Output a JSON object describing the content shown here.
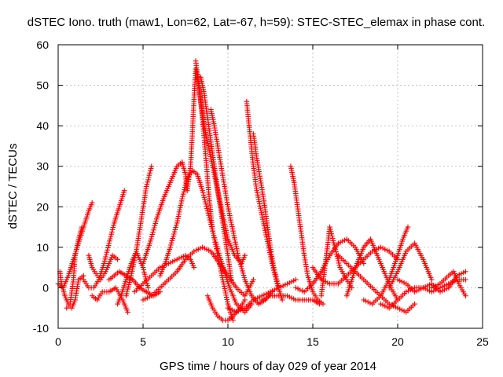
{
  "chart_data": {
    "type": "scatter",
    "title": "dSTEC Iono. truth (maw1, Lon=62, Lat=-67, h=59): STEC-STEC_elemax in phase cont.",
    "xlabel": "GPS time / hours of day 029 of year 2014",
    "ylabel": "dSTEC  / TECUs",
    "xlim": [
      0,
      25
    ],
    "ylim": [
      -10,
      60
    ],
    "xticks": [
      "0",
      "5",
      "10",
      "15",
      "20",
      "25"
    ],
    "yticks": [
      "-10",
      "0",
      "10",
      "20",
      "30",
      "40",
      "50",
      "60"
    ],
    "grid": true,
    "marker": "+",
    "color": "#ff0000",
    "series": [
      {
        "x": [
          0.0,
          0.3,
          0.6,
          0.9,
          1.2,
          1.5,
          1.8,
          2.0
        ],
        "y": [
          1,
          0,
          3,
          7,
          11,
          15,
          19,
          21
        ]
      },
      {
        "x": [
          0.1,
          0.2,
          0.4,
          0.6,
          0.8,
          1.0,
          1.2,
          1.5
        ],
        "y": [
          4,
          1,
          -2,
          -4,
          -5,
          -3,
          2,
          3
        ]
      },
      {
        "x": [
          0.5,
          0.7,
          0.9,
          1.0,
          1.2,
          1.4
        ],
        "y": [
          -5,
          -4,
          2,
          8,
          12,
          15
        ]
      },
      {
        "x": [
          1.5,
          1.8,
          2.1,
          2.4,
          2.7,
          3.0,
          3.3,
          3.6,
          3.9
        ],
        "y": [
          2,
          0,
          0,
          2,
          6,
          11,
          16,
          20,
          24
        ]
      },
      {
        "x": [
          2.0,
          2.3,
          2.6,
          3.0,
          3.4,
          3.8,
          4.1
        ],
        "y": [
          -2,
          -3,
          -1,
          -1,
          0,
          -3,
          -6
        ]
      },
      {
        "x": [
          1.8,
          2.0,
          2.3,
          2.5,
          2.8,
          3.0,
          3.2,
          3.5
        ],
        "y": [
          8,
          5,
          3,
          2,
          4,
          6,
          8,
          7
        ]
      },
      {
        "x": [
          3.5,
          3.7,
          4.0,
          4.3,
          4.6,
          5.0,
          5.3
        ],
        "y": [
          -4,
          -2,
          2,
          6,
          9,
          5,
          0
        ]
      },
      {
        "x": [
          3.0,
          3.3,
          3.6,
          4.0,
          4.4,
          4.8,
          5.2,
          5.6,
          6.0
        ],
        "y": [
          2,
          3,
          4,
          3,
          2,
          0,
          -1,
          -2,
          -1
        ]
      },
      {
        "x": [
          4.0,
          4.3,
          4.6,
          4.9,
          5.2,
          5.5
        ],
        "y": [
          -2,
          3,
          9,
          17,
          25,
          30
        ]
      },
      {
        "x": [
          5.0,
          5.4,
          5.8,
          6.2,
          6.6,
          7.0,
          7.3
        ],
        "y": [
          6,
          11,
          17,
          22,
          26,
          30,
          31
        ]
      },
      {
        "x": [
          7.3,
          7.5,
          7.6,
          7.8,
          7.9,
          8.0,
          8.1,
          8.2,
          8.4,
          8.6,
          8.9,
          9.2,
          9.6,
          10.0,
          10.4,
          10.8,
          11.0
        ],
        "y": [
          31,
          28,
          24,
          30,
          38,
          46,
          54,
          52,
          46,
          40,
          34,
          28,
          20,
          12,
          8,
          6,
          8
        ]
      },
      {
        "x": [
          8.1,
          8.3,
          8.5,
          8.7,
          8.9,
          9.1,
          9.4,
          9.7,
          10.0,
          10.3
        ],
        "y": [
          56,
          50,
          42,
          32,
          22,
          14,
          8,
          2,
          -4,
          -8
        ]
      },
      {
        "x": [
          8.4,
          8.6,
          8.8,
          9.0,
          9.2,
          9.4,
          9.7,
          10.0,
          10.2
        ],
        "y": [
          52,
          48,
          42,
          36,
          30,
          24,
          16,
          8,
          2
        ]
      },
      {
        "x": [
          6.0,
          6.3,
          6.6,
          7.0,
          7.3,
          7.6,
          7.9,
          8.2,
          8.5,
          8.8,
          9.1,
          9.5,
          9.8,
          10.1,
          10.5,
          11.0,
          11.4
        ],
        "y": [
          3,
          6,
          10,
          16,
          22,
          27,
          29,
          28,
          24,
          19,
          14,
          8,
          4,
          0,
          -4,
          -6,
          -4
        ]
      },
      {
        "x": [
          4.5,
          5.0,
          5.5,
          6.0,
          6.5,
          7.0,
          7.5,
          7.8,
          8.0
        ],
        "y": [
          -1,
          1,
          3,
          5,
          6,
          7,
          8,
          7,
          5
        ]
      },
      {
        "x": [
          5.0,
          5.5,
          6.0,
          6.5,
          7.0,
          7.5,
          8.0,
          8.5,
          9.0,
          9.5,
          10.0,
          10.5,
          11.0,
          11.5
        ],
        "y": [
          -3,
          -2,
          0,
          2,
          4,
          7,
          9,
          10,
          9,
          6,
          3,
          0,
          -2,
          2
        ]
      },
      {
        "x": [
          9.0,
          9.2,
          9.4,
          9.6,
          9.8,
          10.0,
          10.3,
          10.6,
          11.0,
          11.4,
          11.8,
          12.2,
          12.6
        ],
        "y": [
          44,
          40,
          35,
          30,
          25,
          20,
          14,
          8,
          2,
          -2,
          -4,
          -3,
          -1
        ]
      },
      {
        "x": [
          8.8,
          9.1,
          9.4,
          9.7,
          10.0,
          10.3,
          10.7,
          11.0
        ],
        "y": [
          -2,
          -5,
          -7,
          -8,
          -8,
          -7,
          -5,
          -3
        ]
      },
      {
        "x": [
          11.1,
          11.3,
          11.5,
          11.7,
          12.0,
          12.3,
          12.6,
          12.9,
          13.2
        ],
        "y": [
          46,
          38,
          30,
          24,
          18,
          12,
          6,
          1,
          -3
        ]
      },
      {
        "x": [
          11.5,
          11.7,
          11.9,
          12.1,
          12.3,
          12.5,
          12.7,
          13.0
        ],
        "y": [
          38,
          32,
          27,
          22,
          16,
          10,
          5,
          0
        ]
      },
      {
        "x": [
          10.0,
          10.5,
          11.0,
          11.5,
          12.0,
          12.5,
          13.0,
          13.5,
          14.0
        ],
        "y": [
          -5,
          -6,
          -5,
          -3,
          -2,
          -1,
          0,
          1,
          2
        ]
      },
      {
        "x": [
          12.0,
          12.5,
          13.0,
          13.5,
          14.0,
          14.5,
          15.0,
          15.4
        ],
        "y": [
          -3,
          -2,
          -2,
          -2,
          -3,
          -3,
          -3,
          -4
        ]
      },
      {
        "x": [
          13.7,
          13.9,
          14.1,
          14.3,
          14.5,
          14.7,
          15.0,
          15.3,
          15.6
        ],
        "y": [
          30,
          26,
          20,
          14,
          8,
          3,
          -1,
          -3,
          -4
        ]
      },
      {
        "x": [
          14.0,
          14.5,
          15.0,
          15.5,
          16.0,
          16.5,
          17.0,
          17.5,
          18.0
        ],
        "y": [
          0,
          -1,
          1,
          4,
          8,
          11,
          12,
          10,
          6
        ]
      },
      {
        "x": [
          15.5,
          15.8,
          16.0,
          16.3,
          16.6,
          17.0,
          17.3
        ],
        "y": [
          -2,
          8,
          15,
          10,
          5,
          2,
          0
        ]
      },
      {
        "x": [
          15.0,
          15.5,
          16.0,
          16.5,
          17.0,
          17.5,
          18.0,
          18.5,
          19.0,
          19.5,
          20.0
        ],
        "y": [
          5,
          2,
          1,
          1,
          3,
          5,
          7,
          9,
          10,
          9,
          7
        ]
      },
      {
        "x": [
          16.5,
          17.0,
          17.5,
          18.0,
          18.5,
          19.0,
          19.5,
          20.0,
          20.5,
          21.0
        ],
        "y": [
          8,
          6,
          4,
          2,
          0,
          -2,
          -4,
          -5,
          -6,
          -4
        ]
      },
      {
        "x": [
          17.0,
          17.3,
          17.6,
          18.0,
          18.4,
          18.8,
          19.2,
          19.6,
          20.0
        ],
        "y": [
          -2,
          2,
          6,
          10,
          12,
          8,
          4,
          0,
          -3
        ]
      },
      {
        "x": [
          18.0,
          18.5,
          19.0,
          19.5,
          20.0,
          20.3,
          20.6
        ],
        "y": [
          -3,
          -4,
          -2,
          2,
          8,
          12,
          15
        ]
      },
      {
        "x": [
          19.5,
          20.0,
          20.5,
          21.0,
          21.5,
          22.0
        ],
        "y": [
          0,
          4,
          9,
          11,
          7,
          2
        ]
      },
      {
        "x": [
          19.0,
          19.5,
          20.0,
          20.5,
          21.0,
          21.5,
          22.0,
          22.5,
          23.0,
          23.5,
          24.0
        ],
        "y": [
          -4,
          -5,
          -3,
          -1,
          0,
          0,
          -1,
          0,
          1,
          2,
          2
        ]
      },
      {
        "x": [
          20.0,
          20.5,
          21.0,
          21.5,
          22.0,
          22.5,
          23.0,
          23.5,
          24.0
        ],
        "y": [
          2,
          1,
          -1,
          0,
          1,
          -1,
          0,
          3,
          4
        ]
      },
      {
        "x": [
          22.0,
          22.5,
          23.0,
          23.3,
          23.6,
          24.0
        ],
        "y": [
          0,
          1,
          3,
          4,
          1,
          -2
        ]
      }
    ]
  }
}
